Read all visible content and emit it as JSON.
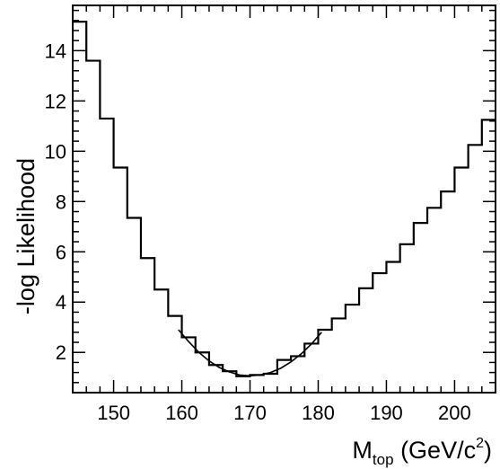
{
  "chart_data": {
    "type": "line",
    "title": "",
    "xlabel": {
      "main": "M",
      "sub": "top",
      "rest": " (GeV/c",
      "sup": "2",
      "end": ")"
    },
    "ylabel": "-log Likelihood",
    "xlim": [
      144,
      206
    ],
    "ylim": [
      0.4,
      15.8
    ],
    "x_ticks": [
      150,
      160,
      170,
      180,
      190,
      200
    ],
    "x_tick_labels": [
      "150",
      "160",
      "170",
      "180",
      "190",
      "200"
    ],
    "y_ticks": [
      2,
      4,
      6,
      8,
      10,
      12,
      14
    ],
    "y_tick_labels": [
      "2",
      "4",
      "6",
      "8",
      "10",
      "12",
      "14"
    ],
    "grid": false,
    "legend": "none",
    "series": [
      {
        "kind": "step-histogram",
        "bin_edges": [
          144,
          146,
          148,
          150,
          152,
          154,
          156,
          158,
          160,
          162,
          164,
          166,
          168,
          170,
          172,
          174,
          176,
          178,
          180,
          182,
          184,
          186,
          188,
          190,
          192,
          194,
          196,
          198,
          200,
          202,
          204,
          206
        ],
        "values": [
          15.15,
          13.6,
          11.3,
          9.35,
          7.35,
          5.75,
          4.5,
          3.45,
          2.6,
          2.0,
          1.5,
          1.25,
          1.05,
          1.1,
          1.15,
          1.7,
          1.85,
          2.35,
          2.9,
          3.35,
          3.9,
          4.55,
          5.15,
          5.6,
          6.3,
          7.15,
          7.75,
          8.4,
          9.35,
          10.25,
          11.25
        ]
      },
      {
        "kind": "parabola-fit",
        "x": [
          159.5,
          161,
          162.5,
          164,
          165.5,
          167,
          168.5,
          170,
          171.5,
          173,
          174.5,
          176,
          177.5,
          179,
          180.5
        ],
        "values": [
          2.9,
          2.43,
          2.0,
          1.66,
          1.4,
          1.22,
          1.1,
          1.07,
          1.1,
          1.2,
          1.37,
          1.62,
          1.94,
          2.33,
          2.8
        ]
      }
    ]
  }
}
